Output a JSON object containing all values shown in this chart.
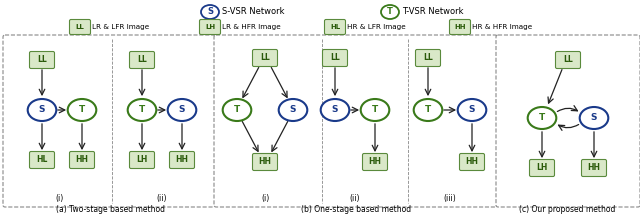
{
  "fig_width": 6.4,
  "fig_height": 2.19,
  "dpi": 100,
  "bg_color": "#ffffff",
  "box_fill": "#d9e8c8",
  "box_edge": "#5a8a3c",
  "box_text_color": "#2a5a0a",
  "s_circle_color": "#1a3a8a",
  "t_circle_color": "#3a7a1a",
  "arrow_color": "#222222",
  "legend_s_color": "#1a3a8a",
  "legend_t_color": "#3a7a1a",
  "legend_text": [
    "S-VSR Network",
    "T-VSR Network"
  ],
  "legend_labels": [
    "S",
    "T"
  ],
  "tag_items": [
    {
      "label": "LL",
      "desc": "LR & LFR Image"
    },
    {
      "label": "LH",
      "desc": "LR & HFR Image"
    },
    {
      "label": "HL",
      "desc": "HR & LFR Image"
    },
    {
      "label": "HH",
      "desc": "HR & HFR Image"
    }
  ],
  "section_titles": [
    "(a) Two-stage based method",
    "(b) One-stage based method",
    "(c) Our proposed method"
  ]
}
